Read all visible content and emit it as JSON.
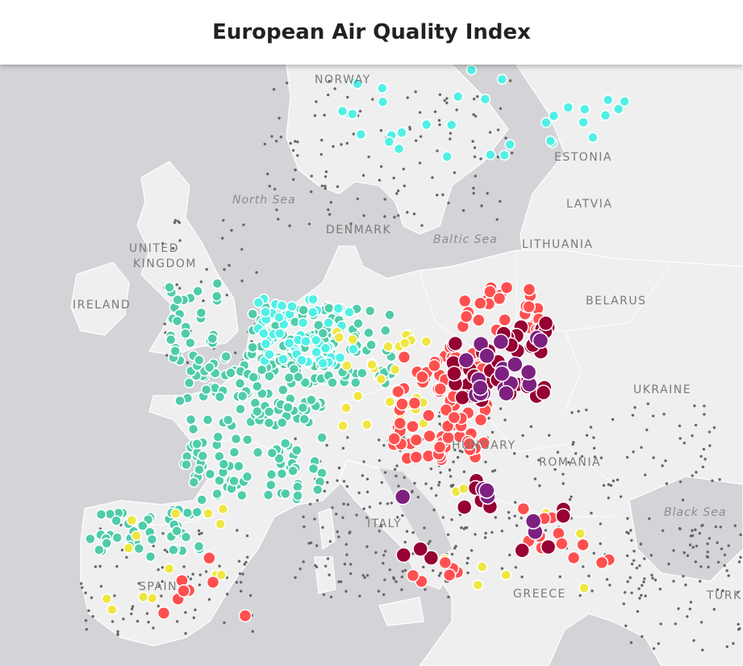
{
  "title": "European Air Quality Index",
  "map": {
    "countries": {
      "norway": "NORWAY",
      "estonia": "ESTONIA",
      "latvia": "LATVIA",
      "lithuania": "LITHUANIA",
      "denmark": "DENMARK",
      "united_kingdom_line1": "UNITED",
      "united_kingdom_line2": "KINGDOM",
      "ireland": "IRELAND",
      "belarus": "BELARUS",
      "ukraine": "UKRAINE",
      "hungary": "HUNGARY",
      "romania": "ROMANIA",
      "italy": "ITALY",
      "spain": "SPAIN",
      "greece": "GREECE",
      "turkey": "TURK"
    },
    "seas": {
      "north_sea": "North Sea",
      "baltic_sea": "Baltic Sea",
      "black_sea": "Black Sea"
    }
  },
  "colors": {
    "sea": "#d4d4d8",
    "land": "#efefef",
    "good": "#50f0e6",
    "fair": "#50ccaa",
    "moderate": "#f0e641",
    "poor": "#ff5050",
    "very_poor": "#960032",
    "extremely_poor": "#7d2181",
    "no_data": "#666666"
  }
}
